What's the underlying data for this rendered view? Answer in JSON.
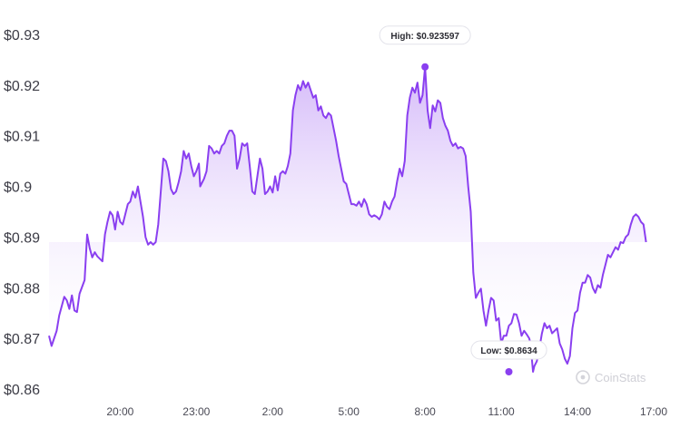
{
  "watermark": "CoinStats",
  "colors": {
    "line": "#8a3ff0",
    "fill_top": "#c6a2f7",
    "axis_text": "#3c3c46"
  },
  "chart_data": {
    "type": "area",
    "x_tick_labels": [
      "20:00",
      "23:00",
      "2:00",
      "5:00",
      "8:00",
      "11:00",
      "14:00",
      "17:00"
    ],
    "x_tick_hours": [
      20,
      23,
      26,
      29,
      32,
      35,
      38,
      41
    ],
    "y_tick_labels": [
      "$0.93",
      "$0.92",
      "$0.91",
      "$0.9",
      "$0.89",
      "$0.88",
      "$0.87",
      "$0.86"
    ],
    "y_tick_values": [
      0.93,
      0.92,
      0.91,
      0.9,
      0.89,
      0.88,
      0.87,
      0.86
    ],
    "ylim": [
      0.86,
      0.93
    ],
    "xlim_hours": [
      17.2,
      42.0
    ],
    "grid": false,
    "high": {
      "label": "High: $0.923597",
      "hour": 32.0,
      "value": 0.923597
    },
    "low": {
      "label": "Low: $0.8634",
      "hour": 35.3,
      "value": 0.8634
    },
    "series": [
      {
        "points": [
          [
            17.2,
            0.8705
          ],
          [
            17.3,
            0.8685
          ],
          [
            17.5,
            0.8715
          ],
          [
            17.6,
            0.8745
          ],
          [
            17.8,
            0.8782
          ],
          [
            17.9,
            0.8775
          ],
          [
            18.0,
            0.8758
          ],
          [
            18.1,
            0.8785
          ],
          [
            18.2,
            0.8755
          ],
          [
            18.3,
            0.8752
          ],
          [
            18.4,
            0.8788
          ],
          [
            18.6,
            0.8815
          ],
          [
            18.7,
            0.8905
          ],
          [
            18.8,
            0.8878
          ],
          [
            18.9,
            0.886
          ],
          [
            19.0,
            0.887
          ],
          [
            19.1,
            0.8862
          ],
          [
            19.3,
            0.8852
          ],
          [
            19.4,
            0.8905
          ],
          [
            19.5,
            0.893
          ],
          [
            19.6,
            0.895
          ],
          [
            19.7,
            0.8943
          ],
          [
            19.8,
            0.8915
          ],
          [
            19.9,
            0.895
          ],
          [
            20.0,
            0.893
          ],
          [
            20.1,
            0.8925
          ],
          [
            20.2,
            0.8945
          ],
          [
            20.3,
            0.8965
          ],
          [
            20.4,
            0.897
          ],
          [
            20.5,
            0.899
          ],
          [
            20.6,
            0.8978
          ],
          [
            20.7,
            0.9
          ],
          [
            20.8,
            0.897
          ],
          [
            20.9,
            0.894
          ],
          [
            21.0,
            0.89
          ],
          [
            21.1,
            0.8885
          ],
          [
            21.2,
            0.889
          ],
          [
            21.3,
            0.8885
          ],
          [
            21.4,
            0.889
          ],
          [
            21.5,
            0.8925
          ],
          [
            21.6,
            0.899
          ],
          [
            21.7,
            0.9055
          ],
          [
            21.8,
            0.905
          ],
          [
            21.9,
            0.903
          ],
          [
            22.0,
            0.8995
          ],
          [
            22.1,
            0.8985
          ],
          [
            22.2,
            0.899
          ],
          [
            22.3,
            0.9008
          ],
          [
            22.4,
            0.903
          ],
          [
            22.5,
            0.907
          ],
          [
            22.6,
            0.9055
          ],
          [
            22.7,
            0.9065
          ],
          [
            22.8,
            0.904
          ],
          [
            22.9,
            0.902
          ],
          [
            23.0,
            0.903
          ],
          [
            23.1,
            0.9045
          ],
          [
            23.15,
            0.9
          ],
          [
            23.3,
            0.9015
          ],
          [
            23.4,
            0.903
          ],
          [
            23.5,
            0.908
          ],
          [
            23.6,
            0.9075
          ],
          [
            23.7,
            0.9065
          ],
          [
            23.8,
            0.907
          ],
          [
            23.9,
            0.9065
          ],
          [
            24.0,
            0.908
          ],
          [
            24.1,
            0.9085
          ],
          [
            24.2,
            0.91
          ],
          [
            24.3,
            0.911
          ],
          [
            24.4,
            0.911
          ],
          [
            24.5,
            0.91
          ],
          [
            24.6,
            0.9035
          ],
          [
            24.7,
            0.9055
          ],
          [
            24.8,
            0.9085
          ],
          [
            24.9,
            0.908
          ],
          [
            25.0,
            0.9085
          ],
          [
            25.1,
            0.904
          ],
          [
            25.2,
            0.899
          ],
          [
            25.3,
            0.8985
          ],
          [
            25.4,
            0.902
          ],
          [
            25.5,
            0.9055
          ],
          [
            25.6,
            0.9035
          ],
          [
            25.7,
            0.8985
          ],
          [
            25.8,
            0.899
          ],
          [
            25.9,
            0.9
          ],
          [
            26.0,
            0.8988
          ],
          [
            26.1,
            0.902
          ],
          [
            26.2,
            0.8992
          ],
          [
            26.3,
            0.9025
          ],
          [
            26.4,
            0.903
          ],
          [
            26.5,
            0.9025
          ],
          [
            26.6,
            0.904
          ],
          [
            26.7,
            0.9065
          ],
          [
            26.8,
            0.915
          ],
          [
            26.9,
            0.918
          ],
          [
            27.0,
            0.92
          ],
          [
            27.1,
            0.919
          ],
          [
            27.2,
            0.9208
          ],
          [
            27.3,
            0.9195
          ],
          [
            27.4,
            0.9205
          ],
          [
            27.5,
            0.919
          ],
          [
            27.6,
            0.9175
          ],
          [
            27.7,
            0.918
          ],
          [
            27.8,
            0.915
          ],
          [
            27.9,
            0.9158
          ],
          [
            28.0,
            0.914
          ],
          [
            28.1,
            0.9135
          ],
          [
            28.2,
            0.9145
          ],
          [
            28.3,
            0.914
          ],
          [
            28.4,
            0.9115
          ],
          [
            28.5,
            0.909
          ],
          [
            28.6,
            0.906
          ],
          [
            28.7,
            0.9035
          ],
          [
            28.8,
            0.901
          ],
          [
            28.9,
            0.9005
          ],
          [
            29.0,
            0.8985
          ],
          [
            29.1,
            0.8965
          ],
          [
            29.2,
            0.8965
          ],
          [
            29.3,
            0.8962
          ],
          [
            29.4,
            0.897
          ],
          [
            29.5,
            0.896
          ],
          [
            29.6,
            0.8975
          ],
          [
            29.7,
            0.8965
          ],
          [
            29.8,
            0.8945
          ],
          [
            29.9,
            0.894
          ],
          [
            30.0,
            0.8943
          ],
          [
            30.1,
            0.894
          ],
          [
            30.2,
            0.8935
          ],
          [
            30.3,
            0.8945
          ],
          [
            30.4,
            0.897
          ],
          [
            30.5,
            0.896
          ],
          [
            30.6,
            0.8955
          ],
          [
            30.7,
            0.897
          ],
          [
            30.8,
            0.898
          ],
          [
            30.9,
            0.901
          ],
          [
            31.0,
            0.9035
          ],
          [
            31.1,
            0.902
          ],
          [
            31.2,
            0.905
          ],
          [
            31.3,
            0.914
          ],
          [
            31.4,
            0.9175
          ],
          [
            31.5,
            0.9195
          ],
          [
            31.6,
            0.9185
          ],
          [
            31.7,
            0.9205
          ],
          [
            31.8,
            0.9165
          ],
          [
            31.9,
            0.918
          ],
          [
            32.0,
            0.9236
          ],
          [
            32.1,
            0.915
          ],
          [
            32.2,
            0.9115
          ],
          [
            32.3,
            0.916
          ],
          [
            32.4,
            0.9148
          ],
          [
            32.5,
            0.917
          ],
          [
            32.6,
            0.9165
          ],
          [
            32.7,
            0.9135
          ],
          [
            32.8,
            0.912
          ],
          [
            32.9,
            0.911
          ],
          [
            33.0,
            0.909
          ],
          [
            33.1,
            0.908
          ],
          [
            33.2,
            0.9085
          ],
          [
            33.3,
            0.9075
          ],
          [
            33.4,
            0.9078
          ],
          [
            33.5,
            0.9075
          ],
          [
            33.6,
            0.906
          ],
          [
            33.7,
            0.9
          ],
          [
            33.8,
            0.895
          ],
          [
            33.9,
            0.883
          ],
          [
            34.0,
            0.878
          ],
          [
            34.1,
            0.879
          ],
          [
            34.2,
            0.8798
          ],
          [
            34.3,
            0.8755
          ],
          [
            34.4,
            0.8725
          ],
          [
            34.5,
            0.8755
          ],
          [
            34.6,
            0.878
          ],
          [
            34.7,
            0.8775
          ],
          [
            34.8,
            0.8735
          ],
          [
            34.9,
            0.874
          ],
          [
            35.0,
            0.869
          ],
          [
            35.1,
            0.8705
          ],
          [
            35.2,
            0.8705
          ],
          [
            35.3,
            0.8725
          ],
          [
            35.4,
            0.873
          ],
          [
            35.5,
            0.8748
          ],
          [
            35.6,
            0.8747
          ],
          [
            35.7,
            0.873
          ],
          [
            35.8,
            0.8705
          ],
          [
            35.9,
            0.8715
          ],
          [
            36.0,
            0.8708
          ],
          [
            36.1,
            0.87
          ],
          [
            36.15,
            0.869
          ],
          [
            36.25,
            0.8634
          ],
          [
            36.3,
            0.8645
          ],
          [
            36.4,
            0.8655
          ],
          [
            36.5,
            0.868
          ],
          [
            36.6,
            0.871
          ],
          [
            36.7,
            0.873
          ],
          [
            36.8,
            0.872
          ],
          [
            36.9,
            0.8725
          ],
          [
            37.0,
            0.871
          ],
          [
            37.1,
            0.8715
          ],
          [
            37.2,
            0.872
          ],
          [
            37.3,
            0.869
          ],
          [
            37.4,
            0.8678
          ],
          [
            37.5,
            0.866
          ],
          [
            37.6,
            0.865
          ],
          [
            37.7,
            0.8665
          ],
          [
            37.8,
            0.872
          ],
          [
            37.9,
            0.875
          ],
          [
            38.0,
            0.8755
          ],
          [
            38.1,
            0.879
          ],
          [
            38.2,
            0.881
          ],
          [
            38.3,
            0.881
          ],
          [
            38.4,
            0.8825
          ],
          [
            38.5,
            0.882
          ],
          [
            38.6,
            0.88
          ],
          [
            38.7,
            0.879
          ],
          [
            38.8,
            0.8805
          ],
          [
            38.9,
            0.88
          ],
          [
            39.0,
            0.8825
          ],
          [
            39.1,
            0.8845
          ],
          [
            39.2,
            0.8865
          ],
          [
            39.3,
            0.886
          ],
          [
            39.4,
            0.887
          ],
          [
            39.5,
            0.888
          ],
          [
            39.6,
            0.8875
          ],
          [
            39.7,
            0.889
          ],
          [
            39.8,
            0.8888
          ],
          [
            39.9,
            0.89
          ],
          [
            40.0,
            0.8905
          ],
          [
            40.1,
            0.8925
          ],
          [
            40.2,
            0.894
          ],
          [
            40.3,
            0.8945
          ],
          [
            40.4,
            0.894
          ],
          [
            40.5,
            0.893
          ],
          [
            40.6,
            0.8925
          ],
          [
            40.7,
            0.889
          ]
        ]
      }
    ]
  }
}
